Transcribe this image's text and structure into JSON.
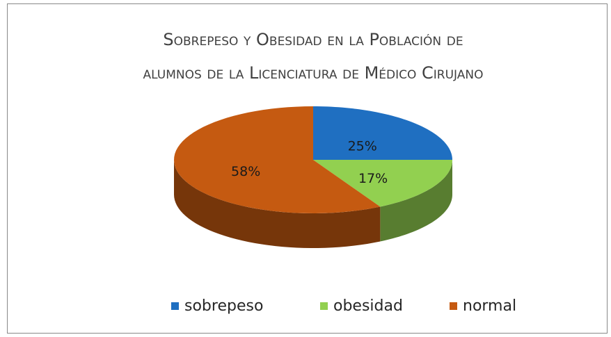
{
  "chart_data": {
    "type": "pie",
    "title": [
      "Sobrepeso y Obesidad en la Población de",
      "alumnos de la Licenciatura de Médico Cirujano"
    ],
    "categories": [
      "sobrepeso",
      "obesidad",
      "normal"
    ],
    "values": [
      25,
      17,
      58
    ],
    "value_labels": [
      "25%",
      "17%",
      "58%"
    ],
    "colors": [
      "#1f6fc1",
      "#92d050",
      "#c55a11"
    ],
    "legend": "bottom"
  }
}
